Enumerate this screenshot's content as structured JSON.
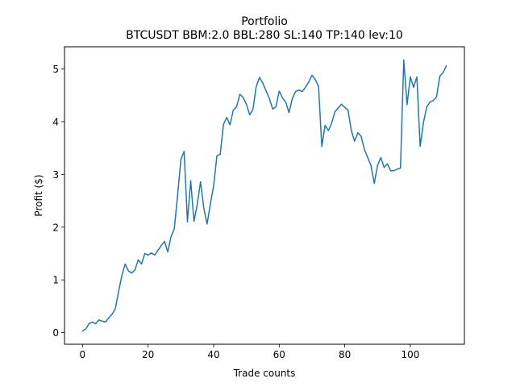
{
  "chart_data": {
    "type": "line",
    "title": "Portfolio",
    "subtitle": "BTCUSDT BBM:2.0 BBL:280 SL:140 TP:140 lev:10",
    "xlabel": "Trade counts",
    "ylabel": "Profit ($)",
    "xlim": [
      -5.5,
      116.5
    ],
    "ylim": [
      -0.22,
      5.42
    ],
    "grid": false,
    "xticks": [
      0,
      20,
      40,
      60,
      80,
      100
    ],
    "yticks": [
      0,
      1,
      2,
      3,
      4,
      5
    ],
    "series": [
      {
        "color": "#1f77b4",
        "x": [
          0,
          1,
          2,
          3,
          4,
          5,
          6,
          7,
          8,
          9,
          10,
          11,
          12,
          13,
          14,
          15,
          16,
          17,
          18,
          19,
          20,
          21,
          22,
          23,
          24,
          25,
          26,
          27,
          28,
          29,
          30,
          31,
          32,
          33,
          34,
          35,
          36,
          37,
          38,
          39,
          40,
          41,
          42,
          43,
          44,
          45,
          46,
          47,
          48,
          49,
          50,
          51,
          52,
          53,
          54,
          55,
          56,
          57,
          58,
          59,
          60,
          61,
          62,
          63,
          64,
          65,
          66,
          67,
          68,
          69,
          70,
          71,
          72,
          73,
          74,
          75,
          76,
          77,
          78,
          79,
          80,
          81,
          82,
          83,
          84,
          85,
          86,
          87,
          88,
          89,
          90,
          91,
          92,
          93,
          94,
          95,
          96,
          97,
          98,
          99,
          100,
          101,
          102,
          103,
          104,
          105,
          106,
          107,
          108,
          109,
          110,
          111
        ],
        "y": [
          0.03,
          0.07,
          0.17,
          0.2,
          0.17,
          0.24,
          0.22,
          0.2,
          0.28,
          0.35,
          0.45,
          0.78,
          1.08,
          1.3,
          1.17,
          1.13,
          1.19,
          1.38,
          1.3,
          1.5,
          1.47,
          1.51,
          1.47,
          1.56,
          1.65,
          1.73,
          1.53,
          1.82,
          1.97,
          2.6,
          3.28,
          3.44,
          2.1,
          2.88,
          2.11,
          2.43,
          2.86,
          2.36,
          2.06,
          2.44,
          2.79,
          3.35,
          3.38,
          3.95,
          4.08,
          3.94,
          4.22,
          4.28,
          4.52,
          4.46,
          4.33,
          4.13,
          4.24,
          4.67,
          4.84,
          4.73,
          4.58,
          4.44,
          4.24,
          4.28,
          4.58,
          4.45,
          4.37,
          4.17,
          4.44,
          4.57,
          4.6,
          4.57,
          4.65,
          4.75,
          4.88,
          4.8,
          4.67,
          3.53,
          3.93,
          3.83,
          3.97,
          4.19,
          4.26,
          4.33,
          4.27,
          4.22,
          3.83,
          3.63,
          3.79,
          3.72,
          3.47,
          3.32,
          3.17,
          2.83,
          3.17,
          3.32,
          3.13,
          3.2,
          3.07,
          3.07,
          3.1,
          3.12,
          5.17,
          4.32,
          4.85,
          4.65,
          4.85,
          3.53,
          3.98,
          4.28,
          4.37,
          4.4,
          4.47,
          4.86,
          4.93,
          5.06
        ]
      }
    ]
  }
}
